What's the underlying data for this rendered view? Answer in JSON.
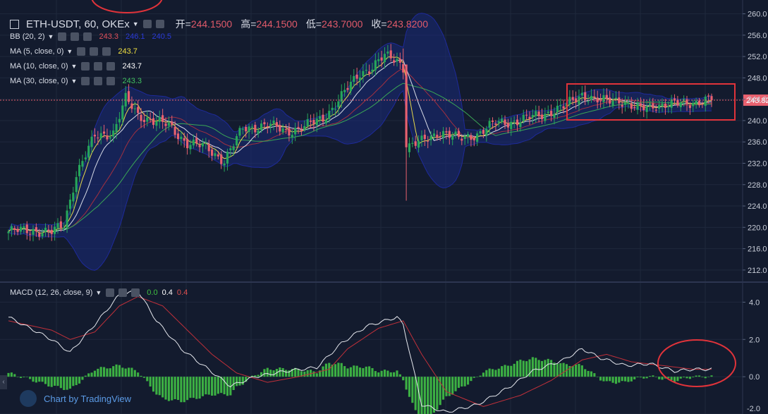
{
  "header": {
    "symbol": "ETH-USDT, 60, OKEx",
    "ohlc": [
      {
        "key": "开",
        "value": "244.1500"
      },
      {
        "key": "高",
        "value": "244.1500"
      },
      {
        "key": "低",
        "value": "243.7000"
      },
      {
        "key": "收",
        "value": "243.8200"
      }
    ]
  },
  "indicators": [
    {
      "label": "BB (20, 2)",
      "values": [
        {
          "v": "243.3",
          "color": "#e0505a"
        },
        {
          "v": "246.1",
          "color": "#2a3ad8"
        },
        {
          "v": "240.5",
          "color": "#2a3ad8"
        }
      ]
    },
    {
      "label": "MA (5, close, 0)",
      "values": [
        {
          "v": "243.7",
          "color": "#f0e040"
        }
      ]
    },
    {
      "label": "MA (10, close, 0)",
      "values": [
        {
          "v": "243.7",
          "color": "#ffffff"
        }
      ]
    },
    {
      "label": "MA (30, close, 0)",
      "values": [
        {
          "v": "243.3",
          "color": "#40c060"
        }
      ]
    }
  ],
  "macd_legend": {
    "label": "MACD (12, 26, close, 9)",
    "values": [
      {
        "v": "0.0",
        "color": "#40c040"
      },
      {
        "v": "0.4",
        "color": "#ffffff"
      },
      {
        "v": "0.4",
        "color": "#e05050"
      }
    ]
  },
  "branding": {
    "text": "Chart by TradingView"
  },
  "colors": {
    "background": "#131b2e",
    "up": "#26a65b",
    "down": "#e8616f",
    "bb_fill": "#1a2a7a",
    "annotation": "#e0333a",
    "current_price": "#e8616f"
  },
  "chart_data": [
    {
      "type": "candlestick",
      "title": "ETH-USDT, 60, OKEx",
      "ylim": [
        210,
        261
      ],
      "yticks": [
        "260.0",
        "256.0",
        "252.0",
        "248.0",
        "244.0",
        "240.0",
        "236.0",
        "232.0",
        "228.0",
        "224.0",
        "220.0",
        "216.0",
        "212.0"
      ],
      "current_price": {
        "label": "243.82",
        "value": 243.82
      },
      "anchors": [
        [
          0,
          219.2
        ],
        [
          8,
          219.5
        ],
        [
          14,
          219.0
        ],
        [
          18,
          220.5
        ],
        [
          22,
          230.0
        ],
        [
          28,
          237.0
        ],
        [
          34,
          237.8
        ],
        [
          38,
          244.0
        ],
        [
          42,
          241.0
        ],
        [
          47,
          240.0
        ],
        [
          52,
          239.0
        ],
        [
          58,
          235.8
        ],
        [
          64,
          235.0
        ],
        [
          70,
          232.5
        ],
        [
          76,
          238.5
        ],
        [
          84,
          239.2
        ],
        [
          90,
          238.0
        ],
        [
          96,
          238.8
        ],
        [
          102,
          240.5
        ],
        [
          106,
          243.0
        ],
        [
          110,
          246.0
        ],
        [
          114,
          249.0
        ],
        [
          118,
          250.0
        ],
        [
          122,
          252.0
        ],
        [
          126,
          251.5
        ],
        [
          128,
          250.0
        ],
        [
          129,
          235.0
        ],
        [
          134,
          236.0
        ],
        [
          140,
          238.0
        ],
        [
          146,
          236.5
        ],
        [
          152,
          237.5
        ],
        [
          158,
          239.5
        ],
        [
          166,
          240.0
        ],
        [
          172,
          241.0
        ],
        [
          180,
          242.5
        ],
        [
          186,
          245.0
        ],
        [
          192,
          243.5
        ],
        [
          198,
          244.0
        ],
        [
          204,
          242.0
        ],
        [
          210,
          243.0
        ],
        [
          216,
          243.0
        ],
        [
          222,
          243.5
        ],
        [
          228,
          243.82
        ]
      ],
      "annotations": [
        "red rectangle around the consolidation range near 240–246 on the right",
        "red ellipse at top-left edge"
      ]
    },
    {
      "type": "macd",
      "ylim": [
        -2.0,
        5.0
      ],
      "yticks": [
        "4.0",
        "2.0",
        "0.0",
        "-2.0"
      ],
      "macd_anchors": [
        [
          0,
          3.2
        ],
        [
          14,
          2.0
        ],
        [
          20,
          1.3
        ],
        [
          28,
          2.8
        ],
        [
          36,
          4.4
        ],
        [
          42,
          4.6
        ],
        [
          48,
          3.0
        ],
        [
          56,
          1.5
        ],
        [
          64,
          0.5
        ],
        [
          72,
          -0.5
        ],
        [
          80,
          0.0
        ],
        [
          90,
          0.3
        ],
        [
          100,
          0.5
        ],
        [
          108,
          1.8
        ],
        [
          116,
          2.7
        ],
        [
          126,
          3.2
        ],
        [
          128,
          2.8
        ],
        [
          134,
          -1.5
        ],
        [
          142,
          -1.9
        ],
        [
          152,
          -1.5
        ],
        [
          162,
          -0.6
        ],
        [
          170,
          0.3
        ],
        [
          180,
          0.9
        ],
        [
          186,
          1.5
        ],
        [
          192,
          1.0
        ],
        [
          200,
          0.6
        ],
        [
          208,
          0.7
        ],
        [
          216,
          0.3
        ],
        [
          222,
          0.4
        ],
        [
          228,
          0.4
        ]
      ],
      "signal_anchors": [
        [
          0,
          3.0
        ],
        [
          14,
          2.5
        ],
        [
          20,
          2.0
        ],
        [
          28,
          2.4
        ],
        [
          36,
          3.8
        ],
        [
          42,
          4.3
        ],
        [
          50,
          3.8
        ],
        [
          58,
          2.5
        ],
        [
          66,
          1.2
        ],
        [
          74,
          0.2
        ],
        [
          84,
          -0.3
        ],
        [
          94,
          0.0
        ],
        [
          104,
          0.4
        ],
        [
          110,
          1.5
        ],
        [
          120,
          2.6
        ],
        [
          128,
          3.0
        ],
        [
          134,
          1.2
        ],
        [
          142,
          -0.8
        ],
        [
          154,
          -1.6
        ],
        [
          166,
          -1.0
        ],
        [
          176,
          -0.2
        ],
        [
          186,
          0.9
        ],
        [
          194,
          1.2
        ],
        [
          202,
          0.8
        ],
        [
          212,
          0.6
        ],
        [
          222,
          0.4
        ],
        [
          228,
          0.4
        ]
      ],
      "annotations": [
        "red ellipse around the flat MACD near zero on the right"
      ]
    }
  ]
}
